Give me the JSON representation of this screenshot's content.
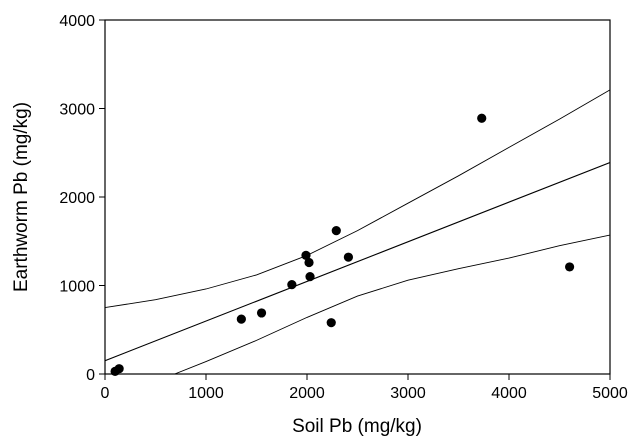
{
  "chart_data": {
    "type": "scatter",
    "title": "",
    "xlabel": "Soil Pb (mg/kg)",
    "ylabel": "Earthworm Pb (mg/kg)",
    "xlim": [
      0,
      5000
    ],
    "ylim": [
      0,
      4000
    ],
    "x_ticks": [
      0,
      1000,
      2000,
      3000,
      4000,
      5000
    ],
    "y_ticks": [
      0,
      1000,
      2000,
      3000,
      4000
    ],
    "x_tick_labels": [
      "0",
      "1000",
      "2000",
      "3000",
      "4000",
      "5000"
    ],
    "y_tick_labels": [
      "0",
      "1000",
      "2000",
      "3000",
      "4000"
    ],
    "grid": false,
    "legend": "none",
    "marker_color": "#000000",
    "line_color": "#000000",
    "points": [
      {
        "x": 100,
        "y": 30
      },
      {
        "x": 140,
        "y": 60
      },
      {
        "x": 1350,
        "y": 620
      },
      {
        "x": 1550,
        "y": 690
      },
      {
        "x": 1850,
        "y": 1010
      },
      {
        "x": 1990,
        "y": 1340
      },
      {
        "x": 2020,
        "y": 1260
      },
      {
        "x": 2030,
        "y": 1100
      },
      {
        "x": 2240,
        "y": 580
      },
      {
        "x": 2290,
        "y": 1620
      },
      {
        "x": 2410,
        "y": 1320
      },
      {
        "x": 3730,
        "y": 2890
      },
      {
        "x": 4600,
        "y": 1210
      }
    ],
    "regression": {
      "intercept": 150,
      "slope": 0.448
    },
    "confidence_band": {
      "upper": [
        {
          "x": 0,
          "y": 750
        },
        {
          "x": 500,
          "y": 840
        },
        {
          "x": 1000,
          "y": 960
        },
        {
          "x": 1500,
          "y": 1120
        },
        {
          "x": 2000,
          "y": 1340
        },
        {
          "x": 2500,
          "y": 1620
        },
        {
          "x": 3000,
          "y": 1930
        },
        {
          "x": 3500,
          "y": 2240
        },
        {
          "x": 4000,
          "y": 2560
        },
        {
          "x": 4500,
          "y": 2880
        },
        {
          "x": 5000,
          "y": 3210
        }
      ],
      "lower": [
        {
          "x": 690,
          "y": 0
        },
        {
          "x": 1000,
          "y": 140
        },
        {
          "x": 1500,
          "y": 380
        },
        {
          "x": 2000,
          "y": 640
        },
        {
          "x": 2500,
          "y": 880
        },
        {
          "x": 3000,
          "y": 1060
        },
        {
          "x": 3500,
          "y": 1190
        },
        {
          "x": 4000,
          "y": 1310
        },
        {
          "x": 4500,
          "y": 1450
        },
        {
          "x": 5000,
          "y": 1570
        }
      ]
    }
  }
}
